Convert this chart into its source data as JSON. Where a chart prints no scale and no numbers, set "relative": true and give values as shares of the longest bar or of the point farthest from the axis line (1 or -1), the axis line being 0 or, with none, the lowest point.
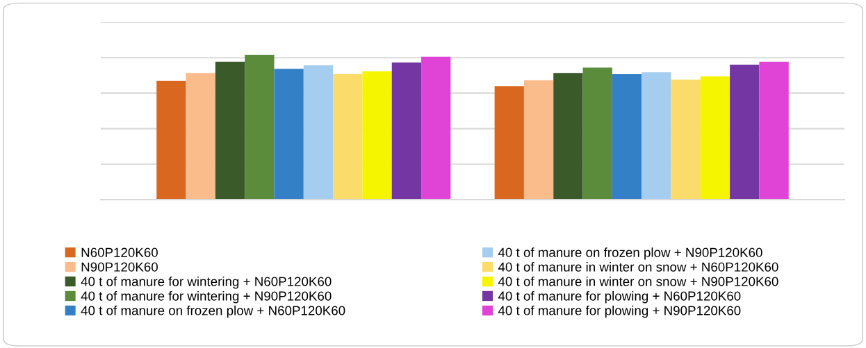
{
  "chart_data": {
    "type": "bar",
    "relative": true,
    "categories": [
      null,
      null
    ],
    "grid": "y",
    "legend": "bottom",
    "series": [
      {
        "name": "N60P120K60",
        "color": "#d9671f",
        "values": [
          0.819,
          0.784
        ]
      },
      {
        "name": "N90P120K60",
        "color": "#fbbc8c",
        "values": [
          0.875,
          0.824
        ]
      },
      {
        "name": "40 t of manure for wintering + N60P120K60",
        "color": "#3b5a2a",
        "values": [
          0.952,
          0.874
        ]
      },
      {
        "name": "40 t of manure for wintering + N90P120K60",
        "color": "#5a8c3c",
        "values": [
          1.0,
          0.911
        ]
      },
      {
        "name": "40 t of manure on frozen plow + N60P120K60",
        "color": "#3480c6",
        "values": [
          0.903,
          0.866
        ]
      },
      {
        "name": "40 t of manure on frozen plow + N90P120K60",
        "color": "#a4cdf0",
        "values": [
          0.927,
          0.879
        ]
      },
      {
        "name": "40 t of manure in winter on snow + N60P120K60",
        "color": "#fbdc6a",
        "values": [
          0.867,
          0.829
        ]
      },
      {
        "name": "40 t of manure in winter on snow + N90P120K60",
        "color": "#f5f500",
        "values": [
          0.887,
          0.851
        ]
      },
      {
        "name": "40 t of manure for plowing + N60P120K60",
        "color": "#7436a2",
        "values": [
          0.946,
          0.931
        ]
      },
      {
        "name": "40 t of manure for plowing + N90P120K60",
        "color": "#e044d6",
        "values": [
          0.987,
          0.952
        ]
      }
    ]
  }
}
